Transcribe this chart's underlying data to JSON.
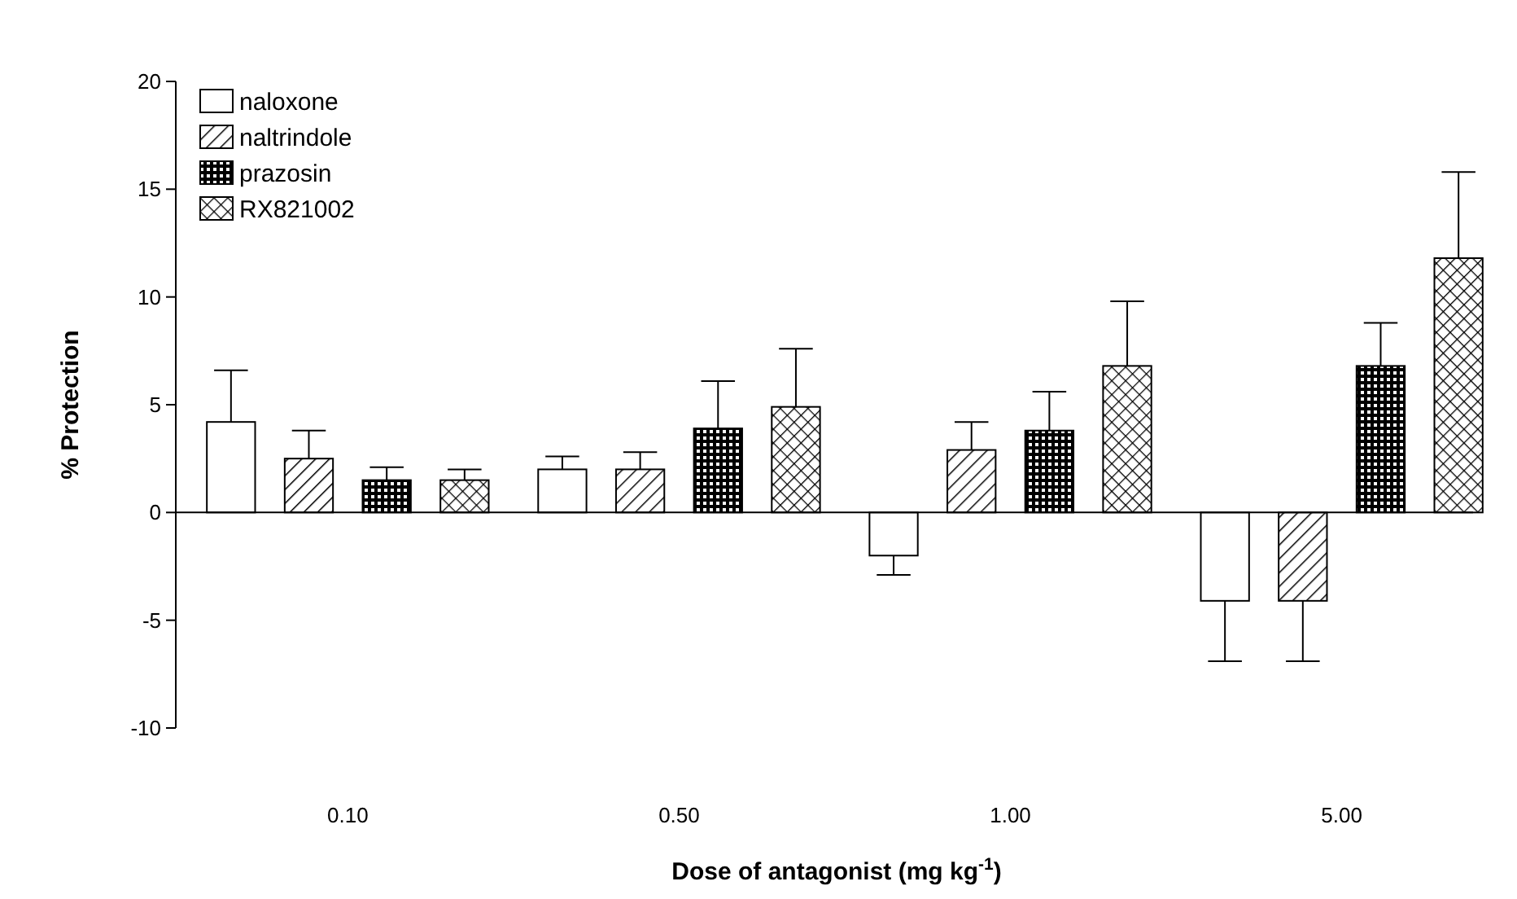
{
  "chart_data": {
    "type": "bar",
    "xlabel": "Dose of antagonist (mg kg$^{-1}$)",
    "ylabel": "% Protection",
    "categories": [
      "0.10",
      "0.50",
      "1.00",
      "5.00"
    ],
    "series": [
      {
        "name": "naloxone",
        "color": "#ffffff",
        "values": [
          4.2,
          2.0,
          -2.0,
          -4.1
        ],
        "errors": [
          [
            4.2,
            6.6
          ],
          [
            2.0,
            2.6
          ],
          [
            -2.9,
            -2.0
          ],
          [
            -6.9,
            -4.1
          ]
        ]
      },
      {
        "name": "naltrindole",
        "color": "#000000",
        "values": [
          2.5,
          2.0,
          2.9,
          -4.1
        ],
        "errors": [
          [
            2.5,
            3.8
          ],
          [
            2.0,
            2.8
          ],
          [
            2.9,
            4.2
          ],
          [
            -6.9,
            -4.1
          ]
        ]
      },
      {
        "name": "prazosin",
        "color": "#000000",
        "values": [
          1.5,
          3.9,
          3.8,
          6.8
        ],
        "errors": [
          [
            1.5,
            2.1
          ],
          [
            3.9,
            6.1
          ],
          [
            3.8,
            5.6
          ],
          [
            6.8,
            8.8
          ]
        ]
      },
      {
        "name": "RX821002",
        "color": "#000000",
        "values": [
          1.5,
          4.9,
          6.8,
          11.8
        ],
        "errors": [
          [
            1.5,
            2.0
          ],
          [
            4.9,
            7.6
          ],
          [
            6.8,
            9.8
          ],
          [
            11.8,
            15.8
          ]
        ]
      }
    ],
    "ylim": [
      -10,
      20
    ],
    "yticks": [
      -10,
      -5,
      0,
      5,
      10,
      15,
      20
    ],
    "legend": "top left"
  }
}
